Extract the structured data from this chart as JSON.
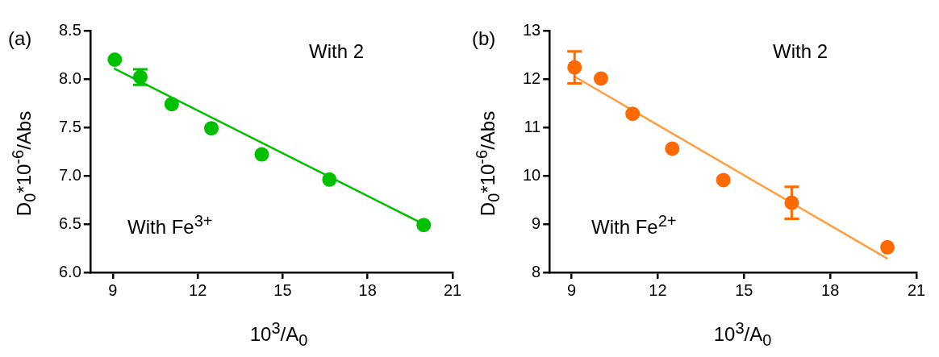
{
  "chart_data": [
    {
      "type": "scatter",
      "xlabel": "10$^{3}$/A$_{0}$",
      "ylabel": "D$_{0}$*10$^{-6}$/Abs",
      "annotations": [
        "(a)",
        "With 2",
        "With Fe$^{3+}$"
      ],
      "xlim": [
        8.2,
        21
      ],
      "xticks": [
        9,
        12,
        15,
        18,
        21
      ],
      "ylim": [
        6,
        8.5
      ],
      "yticks": [
        {
          "value": 6,
          "label": "6.0"
        },
        {
          "value": 6.5,
          "label": "6.5"
        },
        {
          "value": 7,
          "label": "7.0"
        },
        {
          "value": 7.5,
          "label": "7.5"
        },
        {
          "value": 8,
          "label": "8.0"
        },
        {
          "value": 8.5,
          "label": "8.5"
        }
      ],
      "grid": false,
      "legend": false,
      "marker": "circle",
      "x": [
        9.07,
        9.97,
        11.08,
        12.48,
        14.26,
        16.65,
        19.98
      ],
      "series": [
        {
          "color": "#00c000",
          "values": [
            8.2,
            8.02,
            7.74,
            7.49,
            7.22,
            6.96,
            6.49
          ],
          "errors": [
            null,
            0.08,
            null,
            null,
            null,
            null,
            null
          ]
        },
        {
          "type": "line",
          "color": "#00c000",
          "marker": "none",
          "x": [
            9.04,
            19.97
          ],
          "values": [
            8.11,
            6.5
          ]
        }
      ]
    },
    {
      "type": "scatter",
      "xlabel": "10$^{3}$/A$_{0}$",
      "ylabel": "D$_{0}$*10$^{-6}$/Abs",
      "annotations": [
        "(b)",
        "With 2",
        "With Fe$^{2+}$"
      ],
      "xlim": [
        8.23,
        21
      ],
      "xticks": [
        9,
        12,
        15,
        18,
        21
      ],
      "ylim": [
        8,
        13
      ],
      "yticks": [
        8,
        9,
        10,
        11,
        12,
        13
      ],
      "grid": false,
      "legend": false,
      "marker": "circle",
      "x": [
        9.1,
        10.02,
        11.12,
        12.5,
        14.28,
        16.66,
        19.99
      ],
      "series": [
        {
          "color": "#ff6a00",
          "values": [
            12.24,
            12.01,
            11.28,
            10.56,
            9.91,
            9.44,
            8.52
          ],
          "errors": [
            0.33,
            null,
            null,
            null,
            null,
            0.33,
            null
          ]
        },
        {
          "type": "line",
          "color": "#ffa040",
          "marker": "none",
          "x": [
            9.1,
            20
          ],
          "values": [
            12.05,
            8.28
          ]
        }
      ]
    }
  ]
}
